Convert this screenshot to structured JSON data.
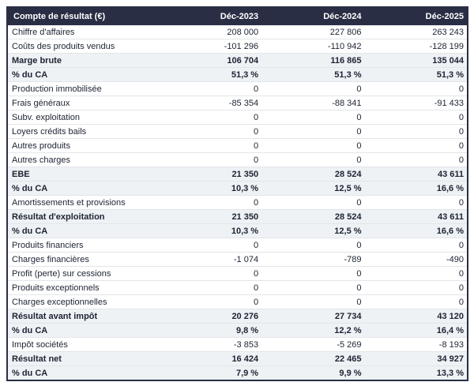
{
  "colors": {
    "header_bg": "#2a2e45",
    "header_text": "#ffffff",
    "section_row_bg": "#eef2f5",
    "row_bg": "#ffffff",
    "row_divider": "#e2e5e9",
    "outer_border": "#2a2e45",
    "text": "#1d2333"
  },
  "chart_data": {
    "type": "table",
    "title": "Compte de résultat (€)",
    "columns": [
      "Déc-2023",
      "Déc-2024",
      "Déc-2025"
    ],
    "rows": [
      {
        "label": "Chiffre d'affaires",
        "values": [
          "208 000",
          "227 806",
          "263 243"
        ],
        "emphasis": false
      },
      {
        "label": "Coûts des produits vendus",
        "values": [
          "-101 296",
          "-110 942",
          "-128 199"
        ],
        "emphasis": false
      },
      {
        "label": "Marge brute",
        "values": [
          "106 704",
          "116 865",
          "135 044"
        ],
        "emphasis": true
      },
      {
        "label": "% du CA",
        "values": [
          "51,3 %",
          "51,3 %",
          "51,3 %"
        ],
        "emphasis": true
      },
      {
        "label": "Production immobilisée",
        "values": [
          "0",
          "0",
          "0"
        ],
        "emphasis": false
      },
      {
        "label": "Frais généraux",
        "values": [
          "-85 354",
          "-88 341",
          "-91 433"
        ],
        "emphasis": false
      },
      {
        "label": "Subv. exploitation",
        "values": [
          "0",
          "0",
          "0"
        ],
        "emphasis": false
      },
      {
        "label": "Loyers crédits bails",
        "values": [
          "0",
          "0",
          "0"
        ],
        "emphasis": false
      },
      {
        "label": "Autres produits",
        "values": [
          "0",
          "0",
          "0"
        ],
        "emphasis": false
      },
      {
        "label": "Autres charges",
        "values": [
          "0",
          "0",
          "0"
        ],
        "emphasis": false
      },
      {
        "label": "EBE",
        "values": [
          "21 350",
          "28 524",
          "43 611"
        ],
        "emphasis": true
      },
      {
        "label": "% du CA",
        "values": [
          "10,3 %",
          "12,5 %",
          "16,6 %"
        ],
        "emphasis": true
      },
      {
        "label": "Amortissements et provisions",
        "values": [
          "0",
          "0",
          "0"
        ],
        "emphasis": false
      },
      {
        "label": "Résultat d'exploitation",
        "values": [
          "21 350",
          "28 524",
          "43 611"
        ],
        "emphasis": true
      },
      {
        "label": "% du CA",
        "values": [
          "10,3 %",
          "12,5 %",
          "16,6 %"
        ],
        "emphasis": true
      },
      {
        "label": "Produits financiers",
        "values": [
          "0",
          "0",
          "0"
        ],
        "emphasis": false
      },
      {
        "label": "Charges financières",
        "values": [
          "-1 074",
          "-789",
          "-490"
        ],
        "emphasis": false
      },
      {
        "label": "Profit (perte) sur cessions",
        "values": [
          "0",
          "0",
          "0"
        ],
        "emphasis": false
      },
      {
        "label": "Produits exceptionnels",
        "values": [
          "0",
          "0",
          "0"
        ],
        "emphasis": false
      },
      {
        "label": "Charges exceptionnelles",
        "values": [
          "0",
          "0",
          "0"
        ],
        "emphasis": false
      },
      {
        "label": "Résultat avant impôt",
        "values": [
          "20 276",
          "27 734",
          "43 120"
        ],
        "emphasis": true
      },
      {
        "label": "% du CA",
        "values": [
          "9,8 %",
          "12,2 %",
          "16,4 %"
        ],
        "emphasis": true
      },
      {
        "label": "Impôt sociétés",
        "values": [
          "-3 853",
          "-5 269",
          "-8 193"
        ],
        "emphasis": false
      },
      {
        "label": "Résultat net",
        "values": [
          "16 424",
          "22 465",
          "34 927"
        ],
        "emphasis": true
      },
      {
        "label": "% du CA",
        "values": [
          "7,9 %",
          "9,9 %",
          "13,3 %"
        ],
        "emphasis": true
      }
    ]
  }
}
